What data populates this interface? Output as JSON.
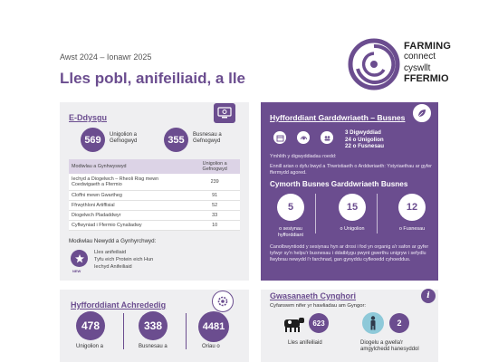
{
  "header": {
    "date": "Awst 2024 – Ionawr 2025",
    "title": "Lles pobl, anifeiliaid, a lle"
  },
  "logo": {
    "line1": "FARMING",
    "line2": "connect",
    "line3": "cyswllt",
    "line4": "FFERMIO"
  },
  "edysgu": {
    "title": "E-Ddysgu",
    "icon": "computer-certificate-icon",
    "stat1": {
      "value": "569",
      "label": "Unigolion a Gefnogwyd"
    },
    "stat2": {
      "value": "355",
      "label": "Busnesau a Gefnogwyd"
    },
    "table": {
      "headers": [
        "Modiwlau a Gynhwyswyd",
        "Unigolion a Gefnogwyd"
      ],
      "rows": [
        {
          "name": "Iechyd a Diogelwch – Rheoli Risg mewn Coedwigaeth a Ffermio",
          "value": "239"
        },
        {
          "name": "Cloffni mewn Gwartheg",
          "value": "91"
        },
        {
          "name": "Ffrwythloni Artiffisial",
          "value": "52"
        },
        {
          "name": "Diogelwch Pladaddwyr",
          "value": "33"
        },
        {
          "name": "Cyflwyniad i Ffermio Cynaliadwy",
          "value": "10"
        }
      ]
    },
    "new_modules": {
      "title": "Modiwlau Newydd a Gynhyrchwyd:",
      "badge": "NEW",
      "items": [
        "Lles anifeiliaid",
        "Tyfu eich Protein eich Hun",
        "Iechyd Anifeiliaid"
      ]
    }
  },
  "hgb": {
    "title": "Hyfforddiant Garddwriaeth – Busnes",
    "icon": "leaf-icon",
    "lines": [
      "3 Digwyddiad",
      "24 o Unigolion",
      "22 o Fusnesau"
    ],
    "topics_title": "Ymhlith y digwyddiadau roedd:",
    "topics_text": "Ennill arian o dyfu bwyd a Thwristiaeth o Arddwriaeth: Ystyriaethau ar gyfer ffermydd agored.",
    "subtitle": "Cymorth Busnes Garddwriaeth Busnes",
    "rings": [
      {
        "value": "5",
        "label": "o sesiynau hyfforddiant"
      },
      {
        "value": "15",
        "label": "o Unigolion"
      },
      {
        "value": "12",
        "label": "o Fusnesau"
      }
    ],
    "footer_text": "Canolbwyntiodd y sesiynau hyn ar drosi i fod yn organig a'r safon ar gyfer tyfwyr sy'n helpu'r busnesau i ddatblygu pwynt gwerthu unigryw i sefydlu llwybrau newydd i'r farchnad, gan gynyddu cyfleoedd cyhoeddus."
  },
  "acred": {
    "title": "Hyfforddiant Achrededig",
    "icon": "gear-certificate-icon",
    "stats": [
      {
        "value": "478",
        "label": "Unigolion a"
      },
      {
        "value": "338",
        "label": "Busnesau a"
      },
      {
        "value": "4481",
        "label": "Oriau o"
      }
    ]
  },
  "cyngor": {
    "title": "Gwasanaeth Cynghori",
    "icon": "info-icon",
    "intro": "Cyfanswm nifer yr hawliadau am Gyngor:",
    "items": [
      {
        "icon": "cow-icon",
        "value": "623",
        "label": "Lles anifeiliaid"
      },
      {
        "icon": "person-icon",
        "value": "2",
        "label": "Diogelu a gwella'r amgylchedd hanesyddol"
      }
    ]
  }
}
